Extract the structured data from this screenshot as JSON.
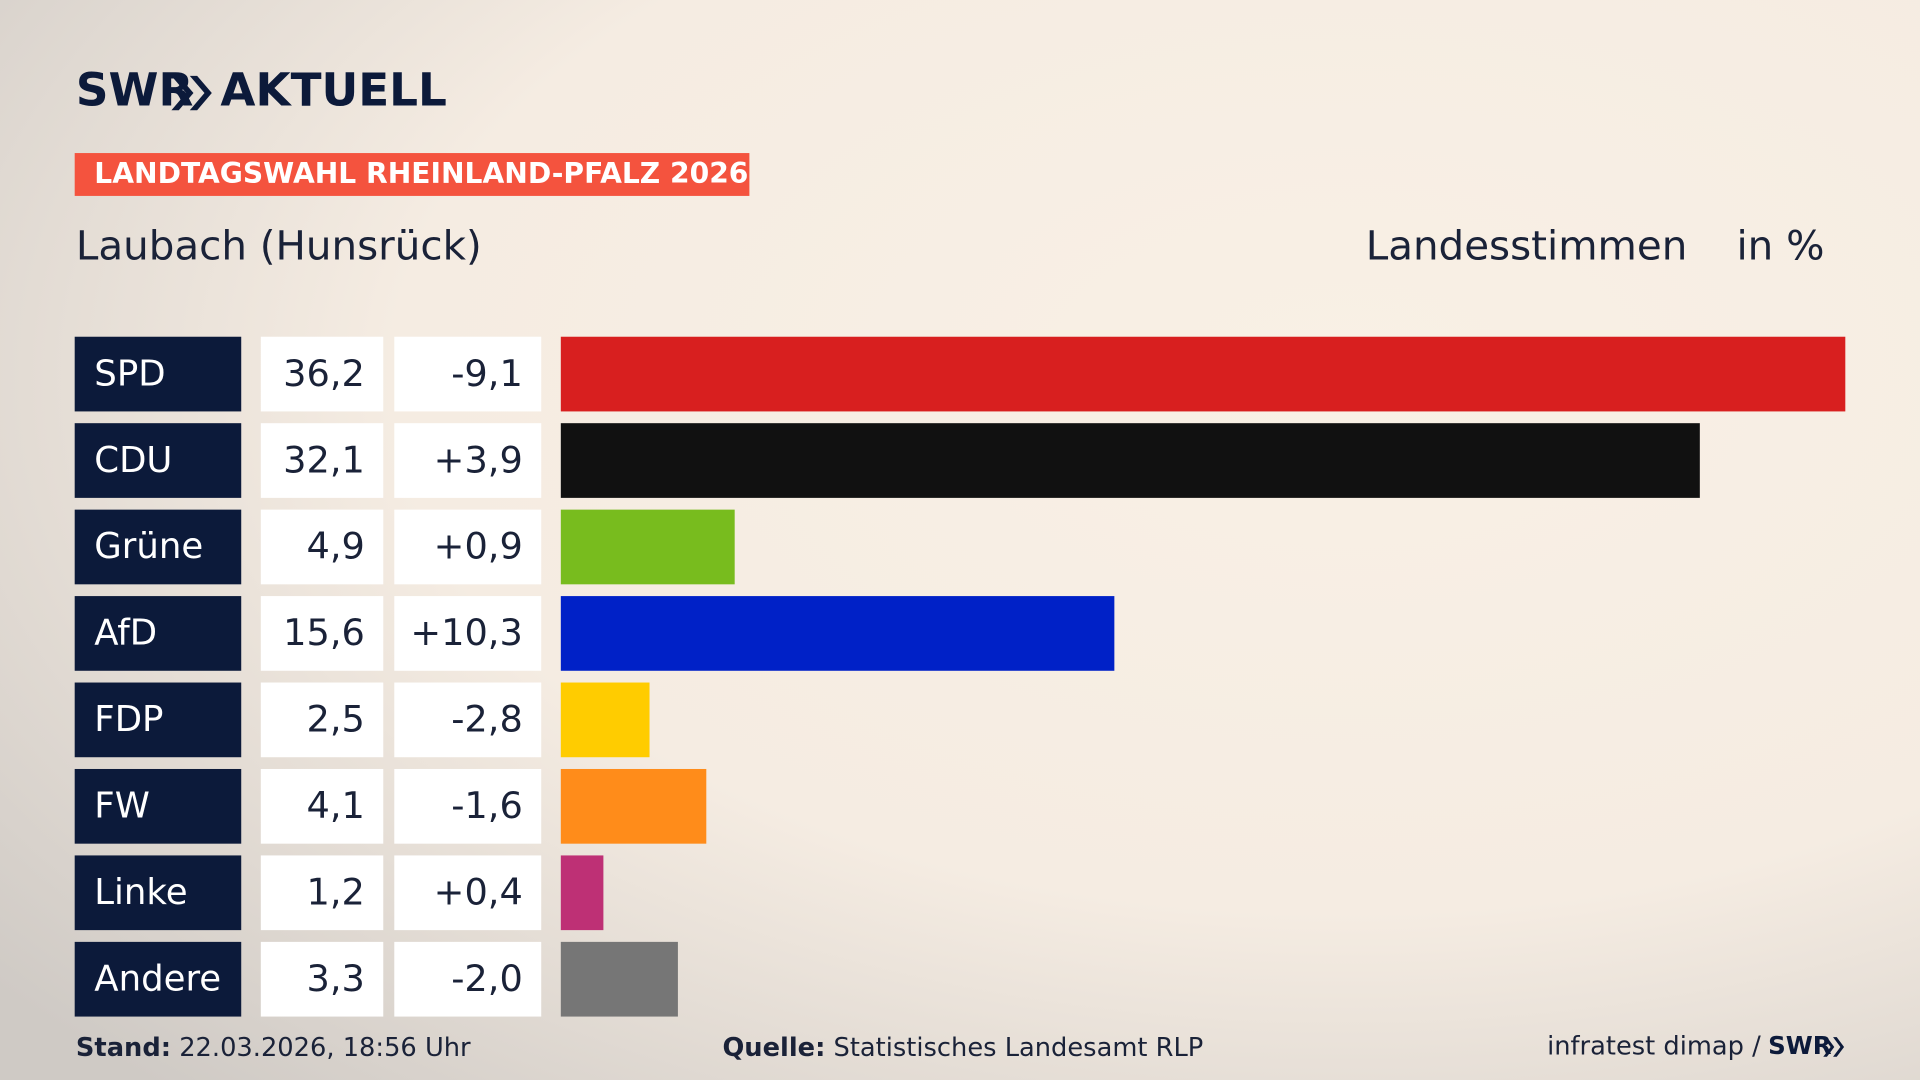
{
  "chart_data": {
    "type": "bar",
    "logo": {
      "brand": "SWR",
      "product": "AKTUELL"
    },
    "banner": "LANDTAGSWAHL RHEINLAND-PFALZ 2026",
    "title": "Laubach (Hunsrück)",
    "measure": "Landesstimmen",
    "unit": "in %",
    "categories": [
      "SPD",
      "CDU",
      "Grüne",
      "AfD",
      "FDP",
      "FW",
      "Linke",
      "Andere"
    ],
    "values": [
      36.2,
      32.1,
      4.9,
      15.6,
      2.5,
      4.1,
      1.2,
      3.3
    ],
    "value_labels": [
      "36,2",
      "32,1",
      "4,9",
      "15,6",
      "2,5",
      "4,1",
      "1,2",
      "3,3"
    ],
    "changes": [
      -9.1,
      3.9,
      0.9,
      10.3,
      -2.8,
      -1.6,
      0.4,
      -2.0
    ],
    "change_labels": [
      "-9,1",
      "+3,9",
      "+0,9",
      "+10,3",
      "-2,8",
      "-1,6",
      "+0,4",
      "-2,0"
    ],
    "colors": [
      "#d81f1f",
      "#111111",
      "#78bc1e",
      "#0021c7",
      "#ffcc00",
      "#ff8c1a",
      "#be3075",
      "#767676"
    ],
    "footer": {
      "stand_label": "Stand:",
      "stand": "22.03.2026, 18:56 Uhr",
      "source_label": "Quelle:",
      "source": "Statistisches Landesamt RLP",
      "credit": "infratest dimap /",
      "credit_brand": "SWR"
    }
  }
}
